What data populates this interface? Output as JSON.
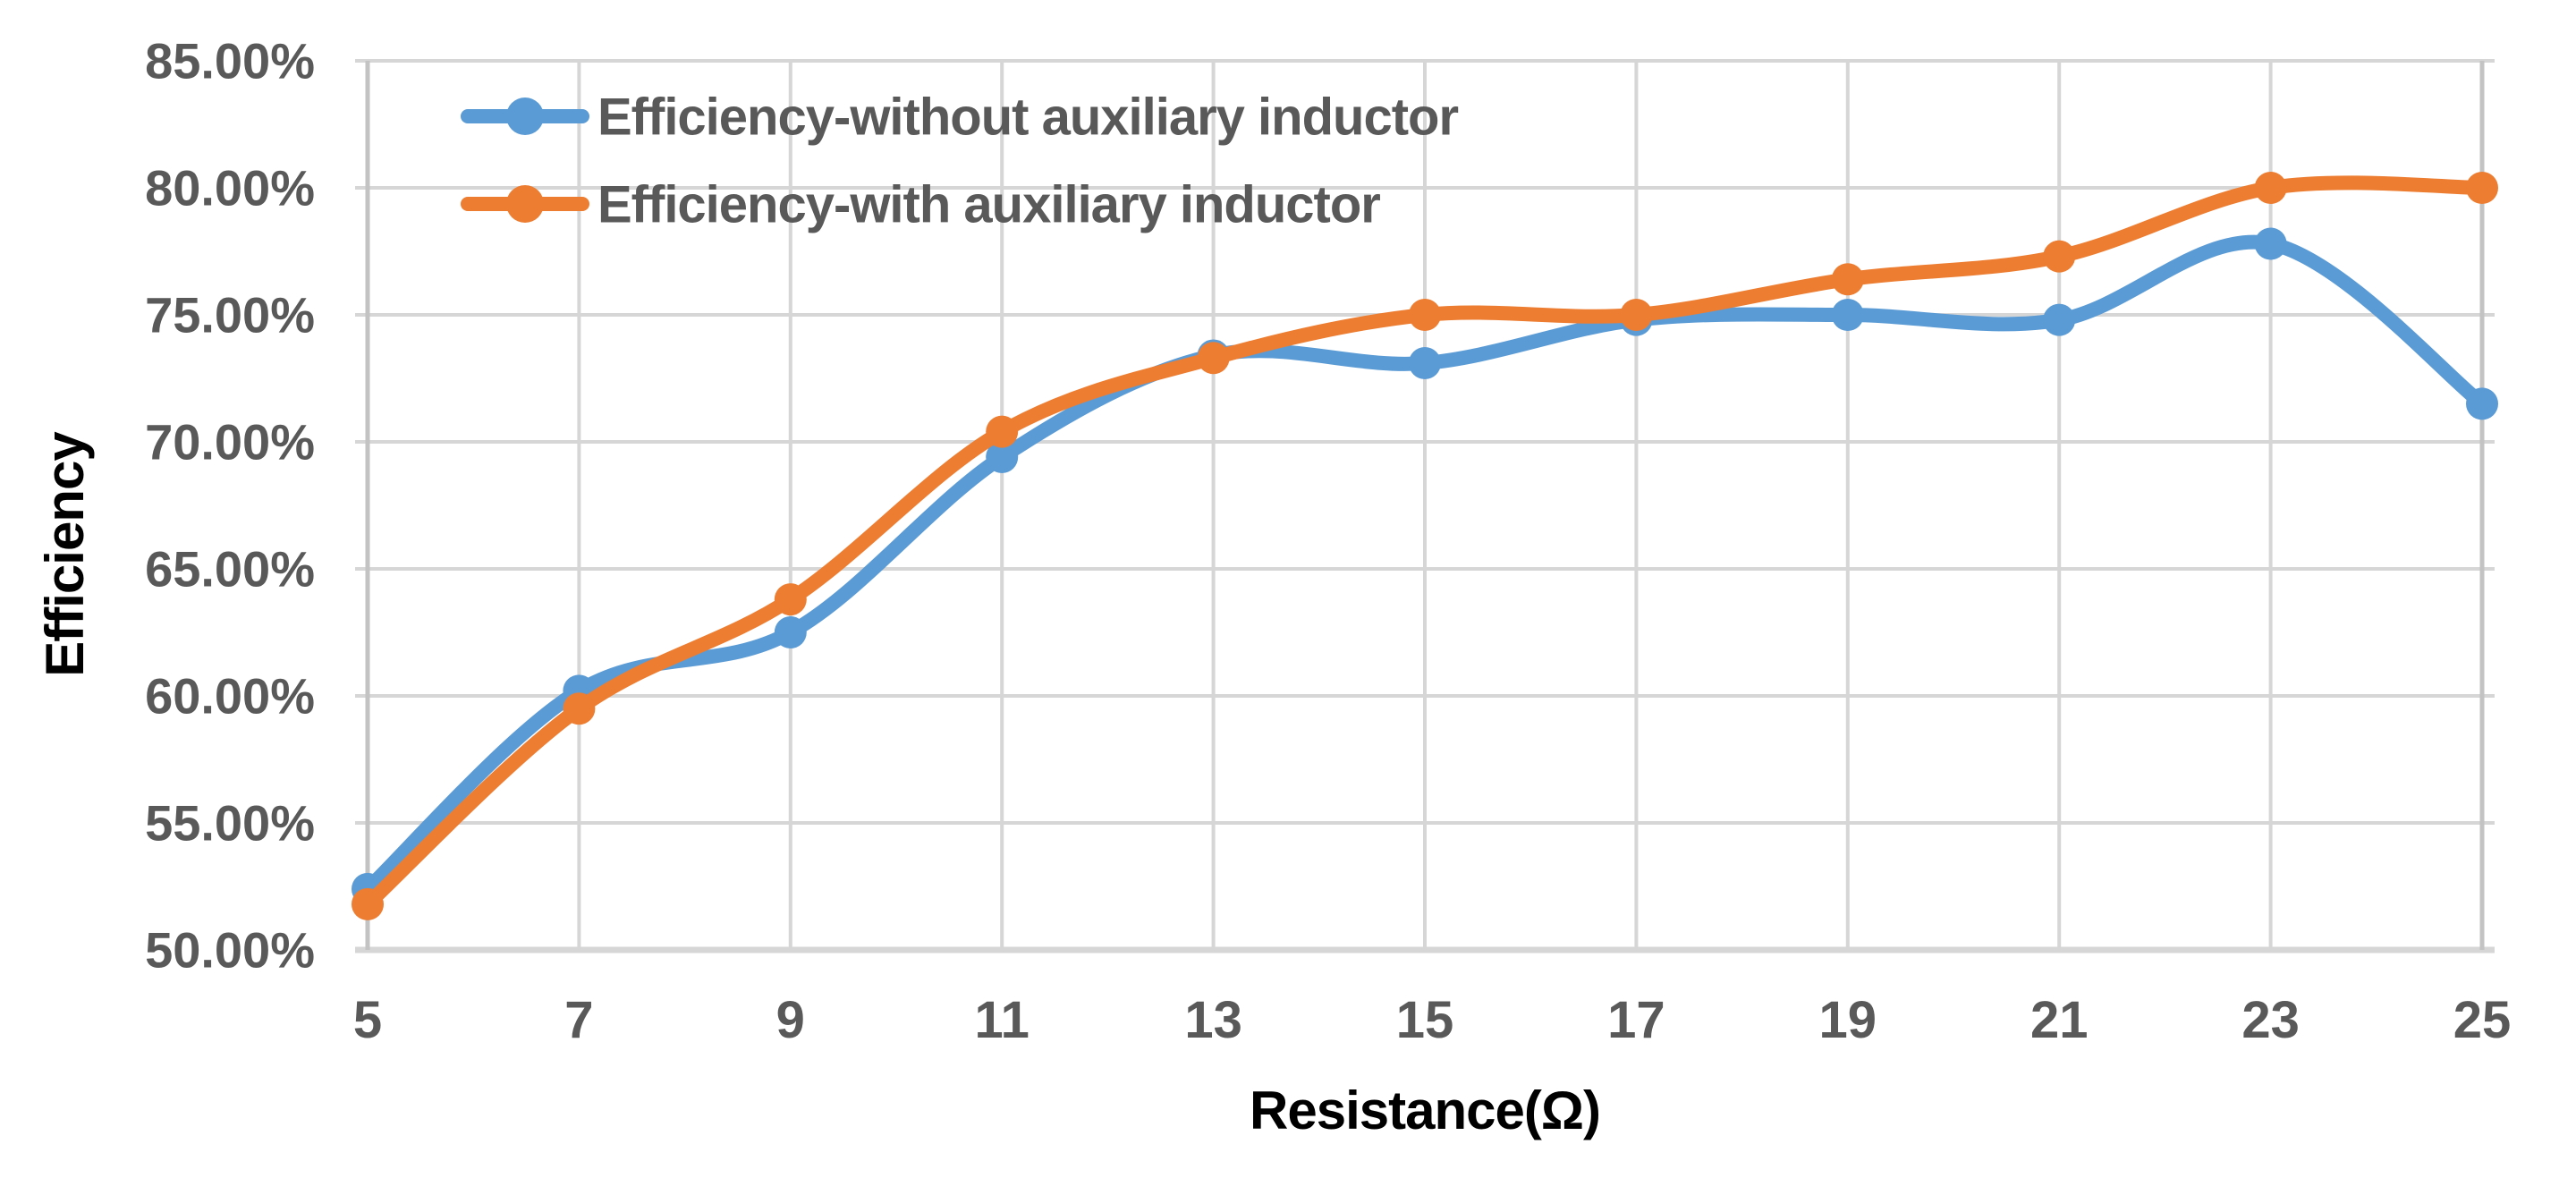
{
  "chart_data": {
    "type": "line",
    "title": "",
    "xlabel": "Resistance(Ω)",
    "ylabel": "Efficiency",
    "xlim": [
      5,
      25
    ],
    "ylim": [
      50,
      85
    ],
    "grid": true,
    "legend_position": "top-left",
    "marker": "circle",
    "line_smooth": true,
    "x": [
      5,
      7,
      9,
      11,
      13,
      15,
      17,
      19,
      21,
      23,
      25
    ],
    "xticks": [
      {
        "v": 5,
        "label": "5"
      },
      {
        "v": 7,
        "label": "7"
      },
      {
        "v": 9,
        "label": "9"
      },
      {
        "v": 11,
        "label": "11"
      },
      {
        "v": 13,
        "label": "13"
      },
      {
        "v": 15,
        "label": "15"
      },
      {
        "v": 17,
        "label": "17"
      },
      {
        "v": 19,
        "label": "19"
      },
      {
        "v": 21,
        "label": "21"
      },
      {
        "v": 23,
        "label": "23"
      },
      {
        "v": 25,
        "label": "25"
      }
    ],
    "yticks": [
      {
        "v": 50,
        "label": "50.00%"
      },
      {
        "v": 55,
        "label": "55.00%"
      },
      {
        "v": 60,
        "label": "60.00%"
      },
      {
        "v": 65,
        "label": "65.00%"
      },
      {
        "v": 70,
        "label": "70.00%"
      },
      {
        "v": 75,
        "label": "75.00%"
      },
      {
        "v": 80,
        "label": "80.00%"
      },
      {
        "v": 85,
        "label": "85.00%"
      }
    ],
    "series": [
      {
        "name": "Efficiency-without auxiliary inductor",
        "color": "#5B9BD5",
        "values": [
          52.4,
          60.2,
          62.5,
          69.4,
          73.4,
          73.1,
          74.8,
          75.0,
          74.8,
          77.8,
          71.5
        ]
      },
      {
        "name": "Efficiency-with auxiliary inductor",
        "color": "#ED7D31",
        "values": [
          51.8,
          59.5,
          63.8,
          70.4,
          73.3,
          75.0,
          75.0,
          76.4,
          77.3,
          80.0,
          80.0
        ]
      }
    ],
    "colors": {
      "gridline": "#D6D6D6",
      "axis_border": "#C3C3C3",
      "tick_label": "#595959",
      "axis_title": "#000000",
      "background": "#FFFFFF"
    }
  }
}
